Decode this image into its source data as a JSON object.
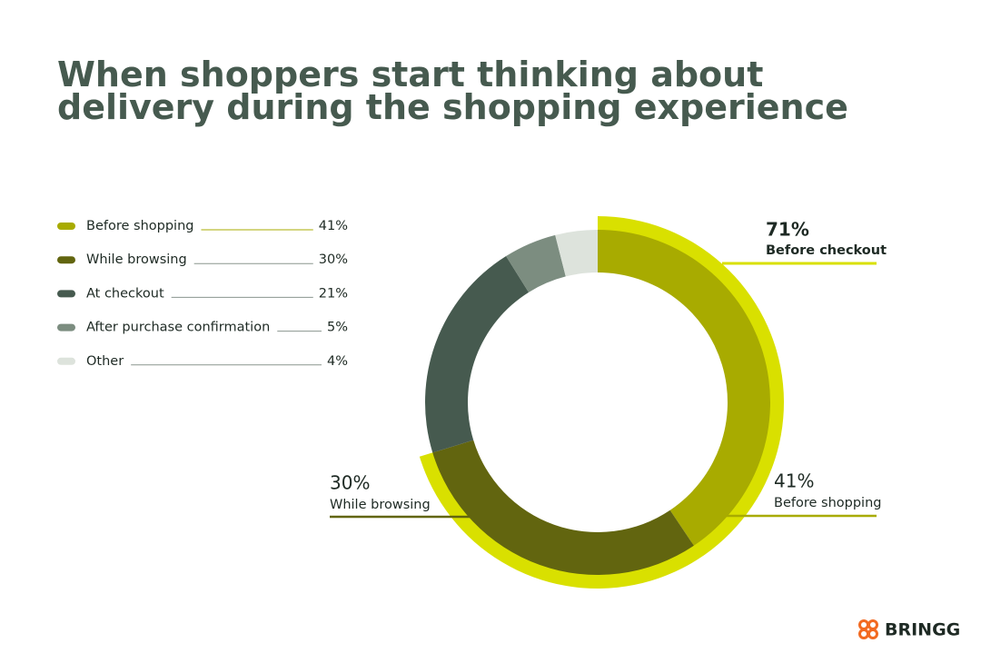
{
  "chart_data": {
    "type": "donut",
    "title": "When shoppers start thinking about delivery during the shopping experience",
    "categories": [
      "Before shopping",
      "While browsing",
      "At checkout",
      "After purchase confirmation",
      "Other"
    ],
    "values": [
      41,
      30,
      21,
      5,
      4
    ],
    "value_labels": [
      "41%",
      "30%",
      "21%",
      "5%",
      "4%"
    ],
    "colors": [
      "#a8ab00",
      "#62650f",
      "#465a4f",
      "#7c8d80",
      "#dde3dc"
    ],
    "highlight": {
      "label": "Before checkout",
      "value": 71,
      "value_label": "71%",
      "color": "#d9e000"
    },
    "brand": "BRINGG"
  }
}
